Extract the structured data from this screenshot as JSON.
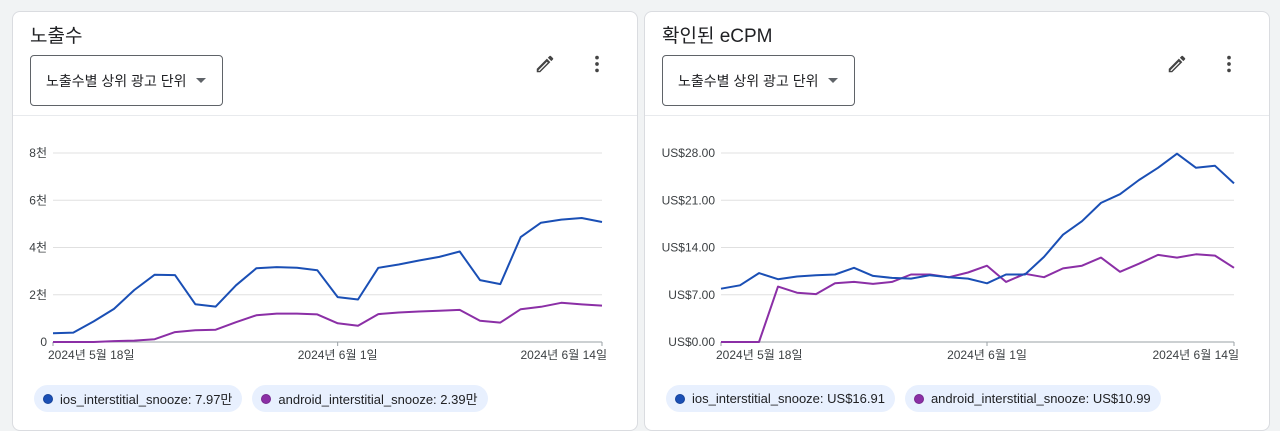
{
  "colors": {
    "ios": "#1a4fb5",
    "android": "#8b2fa6",
    "grid": "#e0e0e0"
  },
  "icons": {
    "edit": "pencil-icon",
    "more": "more-vert-icon",
    "dropdown": "caret-down-icon"
  },
  "cards": [
    {
      "title": "노출수",
      "dropdown_label": "노출수별 상위 광고 단위",
      "legend": [
        {
          "label": "ios_interstitial_snooze: 7.97만"
        },
        {
          "label": "android_interstitial_snooze: 2.39만"
        }
      ]
    },
    {
      "title": "확인된 eCPM",
      "dropdown_label": "노출수별 상위 광고 단위",
      "legend": [
        {
          "label": "ios_interstitial_snooze: US$16.91"
        },
        {
          "label": "android_interstitial_snooze: US$10.99"
        }
      ]
    }
  ],
  "chart_data": [
    {
      "type": "line",
      "title": "노출수",
      "ylim": [
        0,
        8000
      ],
      "yticks": [
        0,
        2000,
        4000,
        6000,
        8000
      ],
      "ytick_labels": [
        "0",
        "2천",
        "4천",
        "6천",
        "8천"
      ],
      "x_tick_labels": [
        {
          "index": 0,
          "label": "2024년 5월 18일"
        },
        {
          "index": 14,
          "label": "2024년 6월 1일"
        },
        {
          "index": 27,
          "label": "2024년 6월 14일"
        }
      ],
      "grid": true,
      "series": [
        {
          "name": "ios_interstitial_snooze",
          "values": [
            370,
            400,
            870,
            1400,
            2200,
            2850,
            2830,
            1600,
            1500,
            2400,
            3120,
            3170,
            3140,
            3040,
            1900,
            1800,
            3140,
            3280,
            3450,
            3600,
            3830,
            2620,
            2450,
            4440,
            5050,
            5180,
            5250,
            5080
          ]
        },
        {
          "name": "android_interstitial_snooze",
          "values": [
            0,
            0,
            0,
            40,
            60,
            120,
            420,
            500,
            520,
            840,
            1130,
            1200,
            1200,
            1170,
            790,
            690,
            1180,
            1250,
            1290,
            1320,
            1360,
            900,
            820,
            1390,
            1490,
            1660,
            1590,
            1540
          ]
        }
      ]
    },
    {
      "type": "line",
      "title": "확인된 eCPM",
      "ylim": [
        0,
        28
      ],
      "yticks": [
        0,
        7,
        14,
        21,
        28
      ],
      "ytick_labels": [
        "US$0.00",
        "US$7.00",
        "US$14.00",
        "US$21.00",
        "US$28.00"
      ],
      "x_tick_labels": [
        {
          "index": 0,
          "label": "2024년 5월 18일"
        },
        {
          "index": 14,
          "label": "2024년 6월 1일"
        },
        {
          "index": 27,
          "label": "2024년 6월 14일"
        }
      ],
      "grid": true,
      "series": [
        {
          "name": "ios_interstitial_snooze",
          "values": [
            7.9,
            8.4,
            10.2,
            9.3,
            9.7,
            9.9,
            10.0,
            11.0,
            9.8,
            9.5,
            9.4,
            9.9,
            9.6,
            9.4,
            8.7,
            10.0,
            10.0,
            12.6,
            15.9,
            17.9,
            20.6,
            21.9,
            24.0,
            25.8,
            27.9,
            25.8,
            26.1,
            23.5
          ]
        },
        {
          "name": "android_interstitial_snooze",
          "values": [
            0,
            0,
            0,
            8.2,
            7.3,
            7.1,
            8.7,
            8.9,
            8.6,
            8.9,
            10.0,
            10.0,
            9.6,
            10.3,
            11.3,
            8.9,
            10.1,
            9.6,
            10.9,
            11.3,
            12.5,
            10.4,
            11.6,
            12.9,
            12.5,
            13.0,
            12.8,
            11.0
          ]
        }
      ]
    }
  ]
}
